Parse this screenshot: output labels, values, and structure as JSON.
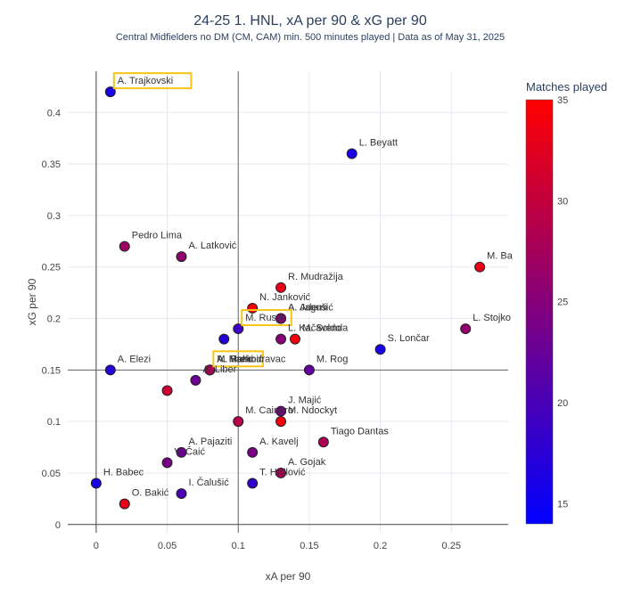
{
  "chart_data": {
    "type": "scatter",
    "title": "24-25 1. HNL, xA per 90 & xG per 90",
    "subtitle": "Central Midfielders no DM (CM, CAM) min. 500 minutes played | Data as of May 31, 2025",
    "xlabel": "xA per 90",
    "ylabel": "xG per 90",
    "xlim": [
      -0.02,
      0.29
    ],
    "ylim": [
      -0.008,
      0.44
    ],
    "xticks": [
      0,
      0.05,
      0.1,
      0.15,
      0.2,
      0.25
    ],
    "xtick_labels": [
      "0",
      "0.05",
      "0.1",
      "0.15",
      "0.2",
      "0.25"
    ],
    "yticks": [
      0,
      0.05,
      0.1,
      0.15,
      0.2,
      0.25,
      0.3,
      0.35,
      0.4
    ],
    "ytick_labels": [
      "0",
      "0.05",
      "0.1",
      "0.15",
      "0.2",
      "0.25",
      "0.3",
      "0.35",
      "0.4"
    ],
    "reference_lines": {
      "x": 0.1,
      "y": 0.15
    },
    "grid": true,
    "colorbar": {
      "title": "Matches played",
      "min": 14,
      "max": 35,
      "ticks": [
        15,
        20,
        25,
        30,
        35
      ],
      "tick_labels": [
        "15",
        "20",
        "25",
        "30",
        "35"
      ],
      "low_color": "#0000ff",
      "high_color": "#ff0000"
    },
    "highlight_color": "#f5c518",
    "points": [
      {
        "name": "A. Trajkovski",
        "x": 0.01,
        "y": 0.42,
        "matches": 16,
        "highlight": true
      },
      {
        "name": "L. Beyatt",
        "x": 0.18,
        "y": 0.36,
        "matches": 16
      },
      {
        "name": "Pedro Lima",
        "x": 0.02,
        "y": 0.27,
        "matches": 27
      },
      {
        "name": "A. Latković",
        "x": 0.06,
        "y": 0.26,
        "matches": 26
      },
      {
        "name": "M. Ba",
        "x": 0.27,
        "y": 0.25,
        "matches": 33
      },
      {
        "name": "R. Mudražija",
        "x": 0.13,
        "y": 0.23,
        "matches": 33
      },
      {
        "name": "N. Janković",
        "x": 0.11,
        "y": 0.21,
        "matches": 34
      },
      {
        "name": "A. Jagušić",
        "x": 0.13,
        "y": 0.2,
        "matches": 26
      },
      {
        "name": "A. Ademi",
        "x": 0.13,
        "y": 0.2,
        "matches": 25
      },
      {
        "name": "L. Stojko",
        "x": 0.26,
        "y": 0.19,
        "matches": 26
      },
      {
        "name": "M. Rusyn",
        "x": 0.1,
        "y": 0.19,
        "matches": 19,
        "highlight": true
      },
      {
        "name": "L. Kačavenda",
        "x": 0.13,
        "y": 0.18,
        "matches": 25
      },
      {
        "name": "M. Soldo",
        "x": 0.14,
        "y": 0.18,
        "matches": 34
      },
      {
        "name": "S. Lončar",
        "x": 0.2,
        "y": 0.17,
        "matches": 16
      },
      {
        "name": "",
        "x": 0.09,
        "y": 0.18,
        "matches": 17
      },
      {
        "name": "A. Elezi",
        "x": 0.01,
        "y": 0.15,
        "matches": 17
      },
      {
        "name": "A. Hanić",
        "x": 0.08,
        "y": 0.15,
        "matches": 24,
        "highlight": true
      },
      {
        "name": "A. Mahmić",
        "x": 0.08,
        "y": 0.15,
        "matches": 26
      },
      {
        "name": "M. Prekodravac",
        "x": 0.08,
        "y": 0.15,
        "matches": 28
      },
      {
        "name": "M. Rog",
        "x": 0.15,
        "y": 0.15,
        "matches": 22
      },
      {
        "name": "A. Liber",
        "x": 0.07,
        "y": 0.14,
        "matches": 23
      },
      {
        "name": "",
        "x": 0.05,
        "y": 0.13,
        "matches": 31
      },
      {
        "name": "J. Majić",
        "x": 0.13,
        "y": 0.11,
        "matches": 24
      },
      {
        "name": "M. Cainero",
        "x": 0.1,
        "y": 0.1,
        "matches": 29
      },
      {
        "name": "M. Ndockyt",
        "x": 0.13,
        "y": 0.1,
        "matches": 34
      },
      {
        "name": "Tiago Dantas",
        "x": 0.16,
        "y": 0.08,
        "matches": 28
      },
      {
        "name": "A. Pajaziti",
        "x": 0.06,
        "y": 0.07,
        "matches": 23
      },
      {
        "name": "V. Čaić",
        "x": 0.05,
        "y": 0.06,
        "matches": 24
      },
      {
        "name": "A. Kavelj",
        "x": 0.11,
        "y": 0.07,
        "matches": 24
      },
      {
        "name": "A. Gojak",
        "x": 0.13,
        "y": 0.05,
        "matches": 28
      },
      {
        "name": "T. Hrdlović",
        "x": 0.11,
        "y": 0.04,
        "matches": 18
      },
      {
        "name": "H. Babec",
        "x": 0.0,
        "y": 0.04,
        "matches": 16
      },
      {
        "name": "I. Čalušić",
        "x": 0.06,
        "y": 0.03,
        "matches": 20
      },
      {
        "name": "O. Bakić",
        "x": 0.02,
        "y": 0.02,
        "matches": 33
      }
    ]
  }
}
